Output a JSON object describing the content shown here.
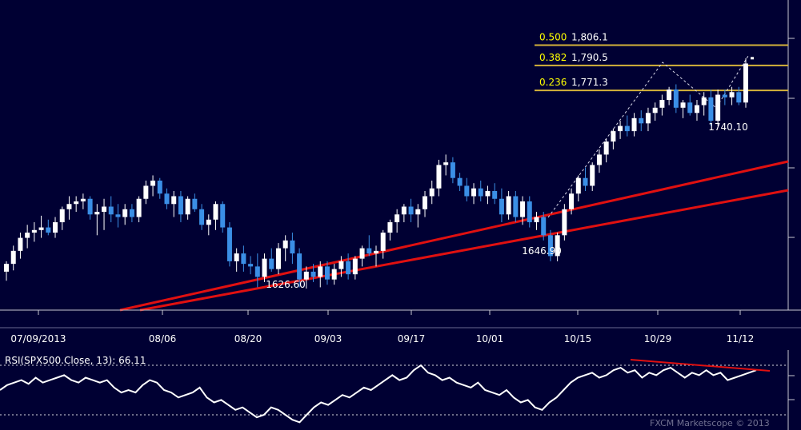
{
  "chart_data": [
    {
      "type": "candlestick",
      "title": "",
      "ylim": [
        1600,
        1815
      ],
      "colors": {
        "background": "#000033",
        "up_candle": "#ffffff",
        "down_candle": "#3b8fe6",
        "fib_line": "#d4b23a",
        "trendline": "#e01010",
        "grid": "#d8d8e0"
      },
      "x_tick_labels": [
        "07/09/2013",
        "08/06",
        "08/20",
        "09/03",
        "09/17",
        "10/01",
        "10/15",
        "10/29",
        "11/12"
      ],
      "fib_levels": [
        {
          "ratio": "0.500",
          "value": "1,806.1",
          "price": 1806.1
        },
        {
          "ratio": "0.382",
          "value": "1,790.5",
          "price": 1790.5
        },
        {
          "ratio": "0.236",
          "value": "1,771.3",
          "price": 1771.3
        }
      ],
      "annotations": [
        {
          "text": "1626.60",
          "price": 1626.6
        },
        {
          "text": "1646.90",
          "price": 1646.9
        },
        {
          "text": "1740.10",
          "price": 1740.1
        }
      ],
      "candles": [
        [
          1632,
          1640,
          1625,
          1638
        ],
        [
          1638,
          1652,
          1633,
          1648
        ],
        [
          1648,
          1662,
          1642,
          1658
        ],
        [
          1658,
          1668,
          1650,
          1662
        ],
        [
          1662,
          1670,
          1655,
          1664
        ],
        [
          1664,
          1675,
          1658,
          1666
        ],
        [
          1666,
          1672,
          1660,
          1662
        ],
        [
          1662,
          1674,
          1658,
          1670
        ],
        [
          1670,
          1682,
          1664,
          1680
        ],
        [
          1680,
          1690,
          1672,
          1684
        ],
        [
          1684,
          1690,
          1678,
          1686
        ],
        [
          1686,
          1692,
          1680,
          1688
        ],
        [
          1688,
          1690,
          1672,
          1676
        ],
        [
          1676,
          1684,
          1660,
          1678
        ],
        [
          1678,
          1688,
          1664,
          1682
        ],
        [
          1682,
          1690,
          1670,
          1676
        ],
        [
          1676,
          1684,
          1666,
          1674
        ],
        [
          1674,
          1684,
          1668,
          1680
        ],
        [
          1680,
          1684,
          1670,
          1674
        ],
        [
          1674,
          1690,
          1670,
          1688
        ],
        [
          1688,
          1702,
          1684,
          1698
        ],
        [
          1698,
          1706,
          1690,
          1702
        ],
        [
          1702,
          1704,
          1688,
          1692
        ],
        [
          1692,
          1696,
          1680,
          1684
        ],
        [
          1684,
          1694,
          1674,
          1690
        ],
        [
          1690,
          1694,
          1670,
          1676
        ],
        [
          1676,
          1690,
          1672,
          1688
        ],
        [
          1688,
          1692,
          1678,
          1680
        ],
        [
          1680,
          1684,
          1664,
          1668
        ],
        [
          1668,
          1676,
          1660,
          1672
        ],
        [
          1672,
          1686,
          1664,
          1684
        ],
        [
          1684,
          1686,
          1662,
          1666
        ],
        [
          1666,
          1670,
          1636,
          1640
        ],
        [
          1640,
          1650,
          1632,
          1646
        ],
        [
          1646,
          1652,
          1632,
          1638
        ],
        [
          1638,
          1644,
          1630,
          1636
        ],
        [
          1636,
          1646,
          1620,
          1628
        ],
        [
          1628,
          1646,
          1624,
          1642
        ],
        [
          1642,
          1650,
          1632,
          1634
        ],
        [
          1634,
          1654,
          1630,
          1650
        ],
        [
          1650,
          1660,
          1640,
          1656
        ],
        [
          1656,
          1662,
          1638,
          1646
        ],
        [
          1646,
          1650,
          1620,
          1626
        ],
        [
          1626,
          1636,
          1619,
          1632
        ],
        [
          1632,
          1638,
          1624,
          1628
        ],
        [
          1628,
          1640,
          1620,
          1636
        ],
        [
          1636,
          1640,
          1622,
          1626
        ],
        [
          1626,
          1638,
          1622,
          1634
        ],
        [
          1634,
          1644,
          1628,
          1640
        ],
        [
          1640,
          1646,
          1626,
          1630
        ],
        [
          1630,
          1644,
          1626,
          1642
        ],
        [
          1642,
          1652,
          1636,
          1650
        ],
        [
          1650,
          1660,
          1644,
          1646
        ],
        [
          1646,
          1652,
          1636,
          1648
        ],
        [
          1648,
          1664,
          1642,
          1662
        ],
        [
          1662,
          1672,
          1656,
          1670
        ],
        [
          1670,
          1680,
          1662,
          1676
        ],
        [
          1676,
          1684,
          1670,
          1682
        ],
        [
          1682,
          1688,
          1670,
          1676
        ],
        [
          1676,
          1684,
          1666,
          1680
        ],
        [
          1680,
          1694,
          1674,
          1690
        ],
        [
          1690,
          1702,
          1684,
          1696
        ],
        [
          1696,
          1718,
          1690,
          1714
        ],
        [
          1714,
          1722,
          1706,
          1716
        ],
        [
          1716,
          1720,
          1700,
          1704
        ],
        [
          1704,
          1708,
          1694,
          1698
        ],
        [
          1698,
          1704,
          1686,
          1690
        ],
        [
          1690,
          1700,
          1684,
          1696
        ],
        [
          1696,
          1702,
          1686,
          1690
        ],
        [
          1690,
          1698,
          1684,
          1694
        ],
        [
          1694,
          1700,
          1684,
          1688
        ],
        [
          1688,
          1696,
          1670,
          1676
        ],
        [
          1676,
          1694,
          1672,
          1690
        ],
        [
          1690,
          1694,
          1670,
          1674
        ],
        [
          1674,
          1690,
          1668,
          1686
        ],
        [
          1686,
          1690,
          1666,
          1670
        ],
        [
          1670,
          1678,
          1664,
          1674
        ],
        [
          1674,
          1678,
          1656,
          1660
        ],
        [
          1660,
          1664,
          1640,
          1644
        ],
        [
          1644,
          1662,
          1640,
          1660
        ],
        [
          1660,
          1684,
          1656,
          1680
        ],
        [
          1680,
          1696,
          1676,
          1692
        ],
        [
          1692,
          1706,
          1686,
          1704
        ],
        [
          1704,
          1712,
          1694,
          1698
        ],
        [
          1698,
          1716,
          1694,
          1714
        ],
        [
          1714,
          1726,
          1708,
          1722
        ],
        [
          1722,
          1734,
          1716,
          1732
        ],
        [
          1732,
          1742,
          1726,
          1740
        ],
        [
          1740,
          1748,
          1734,
          1744
        ],
        [
          1744,
          1752,
          1736,
          1740
        ],
        [
          1740,
          1754,
          1736,
          1750
        ],
        [
          1750,
          1756,
          1740,
          1746
        ],
        [
          1746,
          1758,
          1740,
          1754
        ],
        [
          1754,
          1762,
          1748,
          1758
        ],
        [
          1758,
          1768,
          1752,
          1764
        ],
        [
          1764,
          1774,
          1760,
          1772
        ],
        [
          1772,
          1776,
          1754,
          1758
        ],
        [
          1758,
          1764,
          1750,
          1762
        ],
        [
          1762,
          1768,
          1752,
          1754
        ],
        [
          1754,
          1764,
          1748,
          1760
        ],
        [
          1760,
          1770,
          1752,
          1766
        ],
        [
          1766,
          1772,
          1744,
          1748
        ],
        [
          1748,
          1772,
          1744,
          1768
        ],
        [
          1768,
          1772,
          1760,
          1766
        ],
        [
          1766,
          1774,
          1760,
          1770
        ],
        [
          1770,
          1774,
          1760,
          1762
        ],
        [
          1762,
          1796,
          1758,
          1792
        ]
      ]
    },
    {
      "type": "line",
      "title": "RSI(SPX500.Close, 13): 66.11",
      "ylim": [
        0,
        100
      ],
      "colors": {
        "line": "#ffffff",
        "divergence": "#e01010"
      },
      "values": [
        50,
        54,
        56,
        58,
        55,
        60,
        56,
        58,
        60,
        62,
        58,
        56,
        60,
        58,
        56,
        58,
        52,
        48,
        50,
        48,
        54,
        58,
        56,
        50,
        48,
        44,
        46,
        48,
        52,
        44,
        40,
        42,
        38,
        34,
        36,
        32,
        28,
        30,
        36,
        34,
        30,
        26,
        24,
        30,
        36,
        40,
        38,
        42,
        46,
        44,
        48,
        52,
        50,
        54,
        58,
        62,
        58,
        60,
        66,
        70,
        64,
        62,
        58,
        60,
        56,
        54,
        52,
        56,
        50,
        48,
        46,
        50,
        44,
        40,
        42,
        36,
        34,
        40,
        44,
        50,
        56,
        60,
        62,
        64,
        60,
        62,
        66,
        68,
        64,
        66,
        60,
        64,
        62,
        66,
        68,
        64,
        60,
        64,
        62,
        66,
        62,
        64,
        58,
        60,
        62,
        64,
        66
      ]
    }
  ],
  "watermark": "FXCM Marketscope © 2013"
}
